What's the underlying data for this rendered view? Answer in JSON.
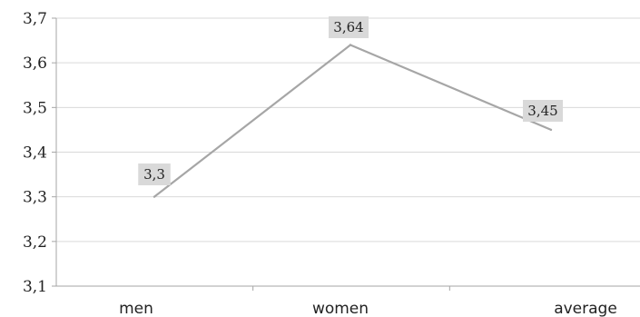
{
  "chart_data": {
    "type": "line",
    "categories": [
      "men",
      "women",
      "average"
    ],
    "series": [
      {
        "values": [
          3.3,
          3.64,
          3.45
        ]
      }
    ],
    "data_labels": [
      "3,3",
      "3,64",
      "3,45"
    ],
    "y_tick_labels": [
      "3,1",
      "3,2",
      "3,3",
      "3,4",
      "3,5",
      "3,6",
      "3,7"
    ],
    "ylim": [
      3.1,
      3.7
    ],
    "grid": true,
    "legend": "none",
    "line_color": "#a6a6a6",
    "label_box_color": "#d9d9d9",
    "title": "",
    "xlabel": "",
    "ylabel": ""
  }
}
